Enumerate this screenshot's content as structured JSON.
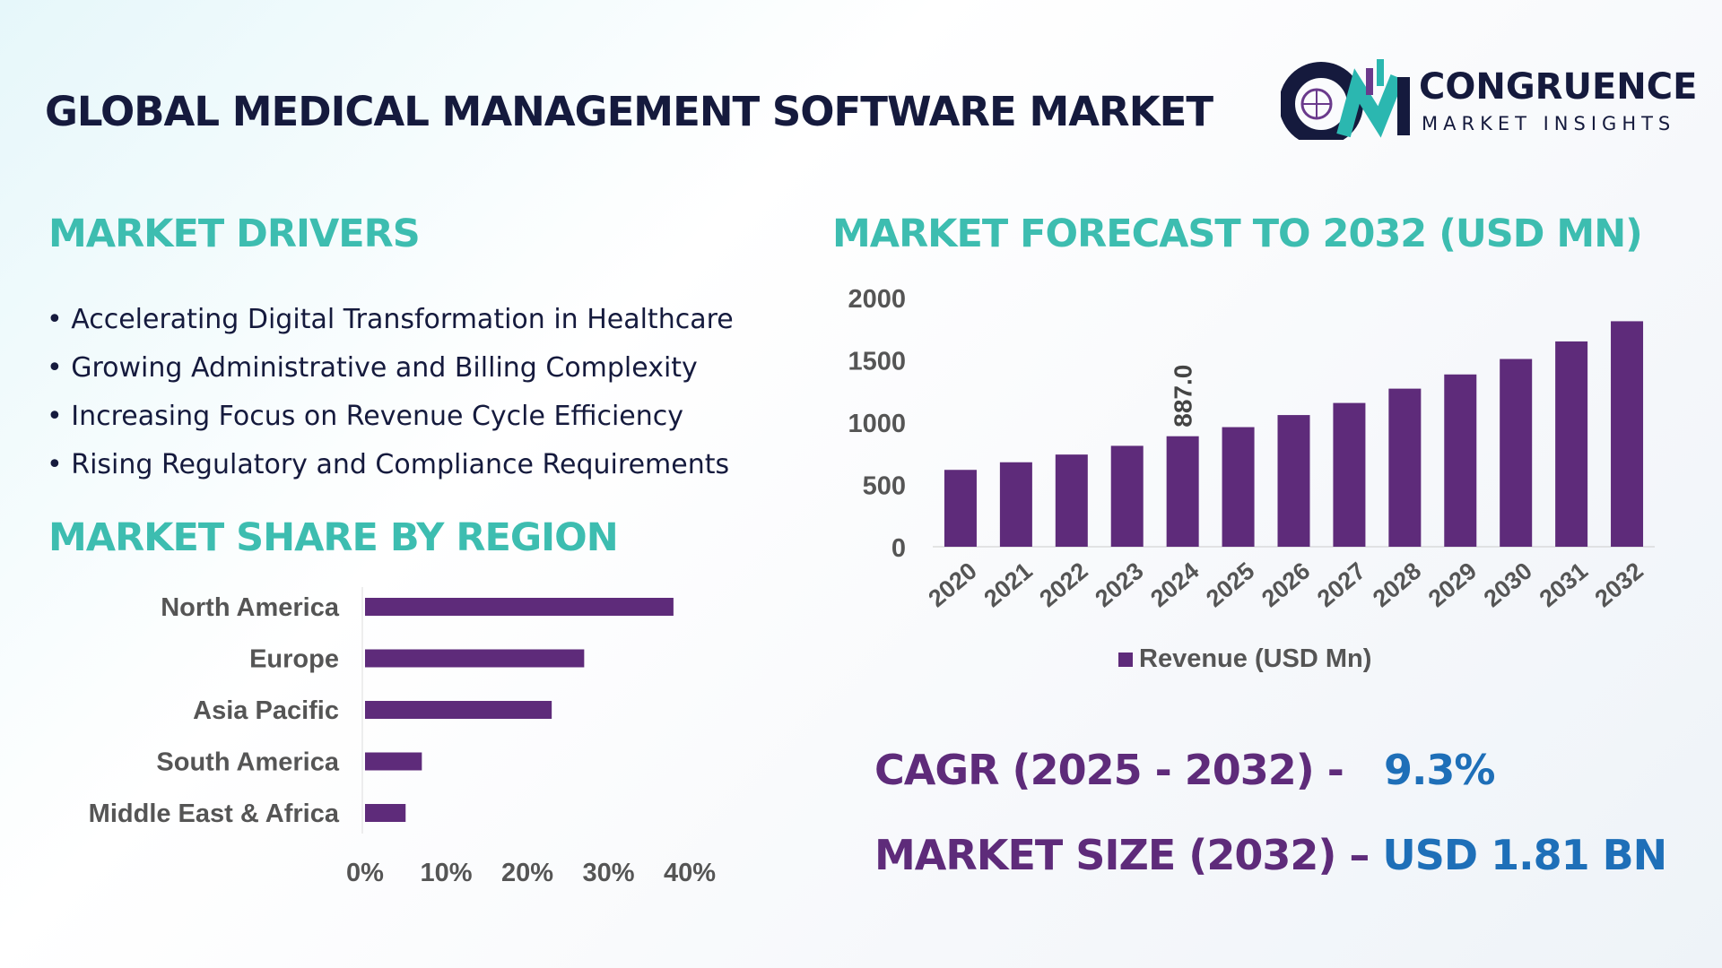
{
  "title": "GLOBAL MEDICAL MANAGEMENT SOFTWARE MARKET",
  "logo": {
    "name": "CONGRUENCE",
    "sub": "MARKET INSIGHTS"
  },
  "drivers": {
    "heading": "MARKET DRIVERS",
    "items": [
      "Accelerating Digital Transformation in Healthcare",
      "Growing Administrative and Billing Complexity",
      "Increasing Focus on Revenue Cycle Efficiency",
      "Rising Regulatory and Compliance Requirements"
    ]
  },
  "kpi": {
    "cagr_label": "CAGR (2025 - 2032) -",
    "cagr_value": "9.3%",
    "size_label": "MARKET SIZE (2032) –",
    "size_value": "USD 1.81 BN"
  },
  "colors": {
    "bar": "#5e2b7a",
    "heading": "#3dbdb0",
    "title": "#151a3d",
    "kpi_value": "#1e6fb8"
  },
  "chart_data": [
    {
      "type": "bar",
      "title": "MARKET FORECAST TO 2032 (USD MN)",
      "categories": [
        "2020",
        "2021",
        "2022",
        "2023",
        "2024",
        "2025",
        "2026",
        "2027",
        "2028",
        "2029",
        "2030",
        "2031",
        "2032"
      ],
      "series": [
        {
          "name": "Revenue (USD Mn)",
          "values": [
            617,
            678,
            740,
            810,
            887,
            960,
            1057,
            1154,
            1269,
            1383,
            1507,
            1648,
            1810
          ]
        }
      ],
      "data_labels": [
        {
          "category": "2024",
          "text": "887.0"
        }
      ],
      "ylim": [
        0,
        2000
      ],
      "yticks": [
        "0",
        "500",
        "1000",
        "1500",
        "2000"
      ],
      "legend": "bottom",
      "grid": false
    },
    {
      "type": "bar",
      "orientation": "horizontal",
      "title": "MARKET SHARE BY REGION",
      "categories": [
        "North America",
        "Europe",
        "Asia Pacific",
        "South America",
        "Middle East & Africa"
      ],
      "values": [
        38,
        27,
        23,
        7,
        5
      ],
      "xlim": [
        0,
        40
      ],
      "xticks": [
        "0%",
        "10%",
        "20%",
        "30%",
        "40%"
      ],
      "grid": false
    }
  ]
}
